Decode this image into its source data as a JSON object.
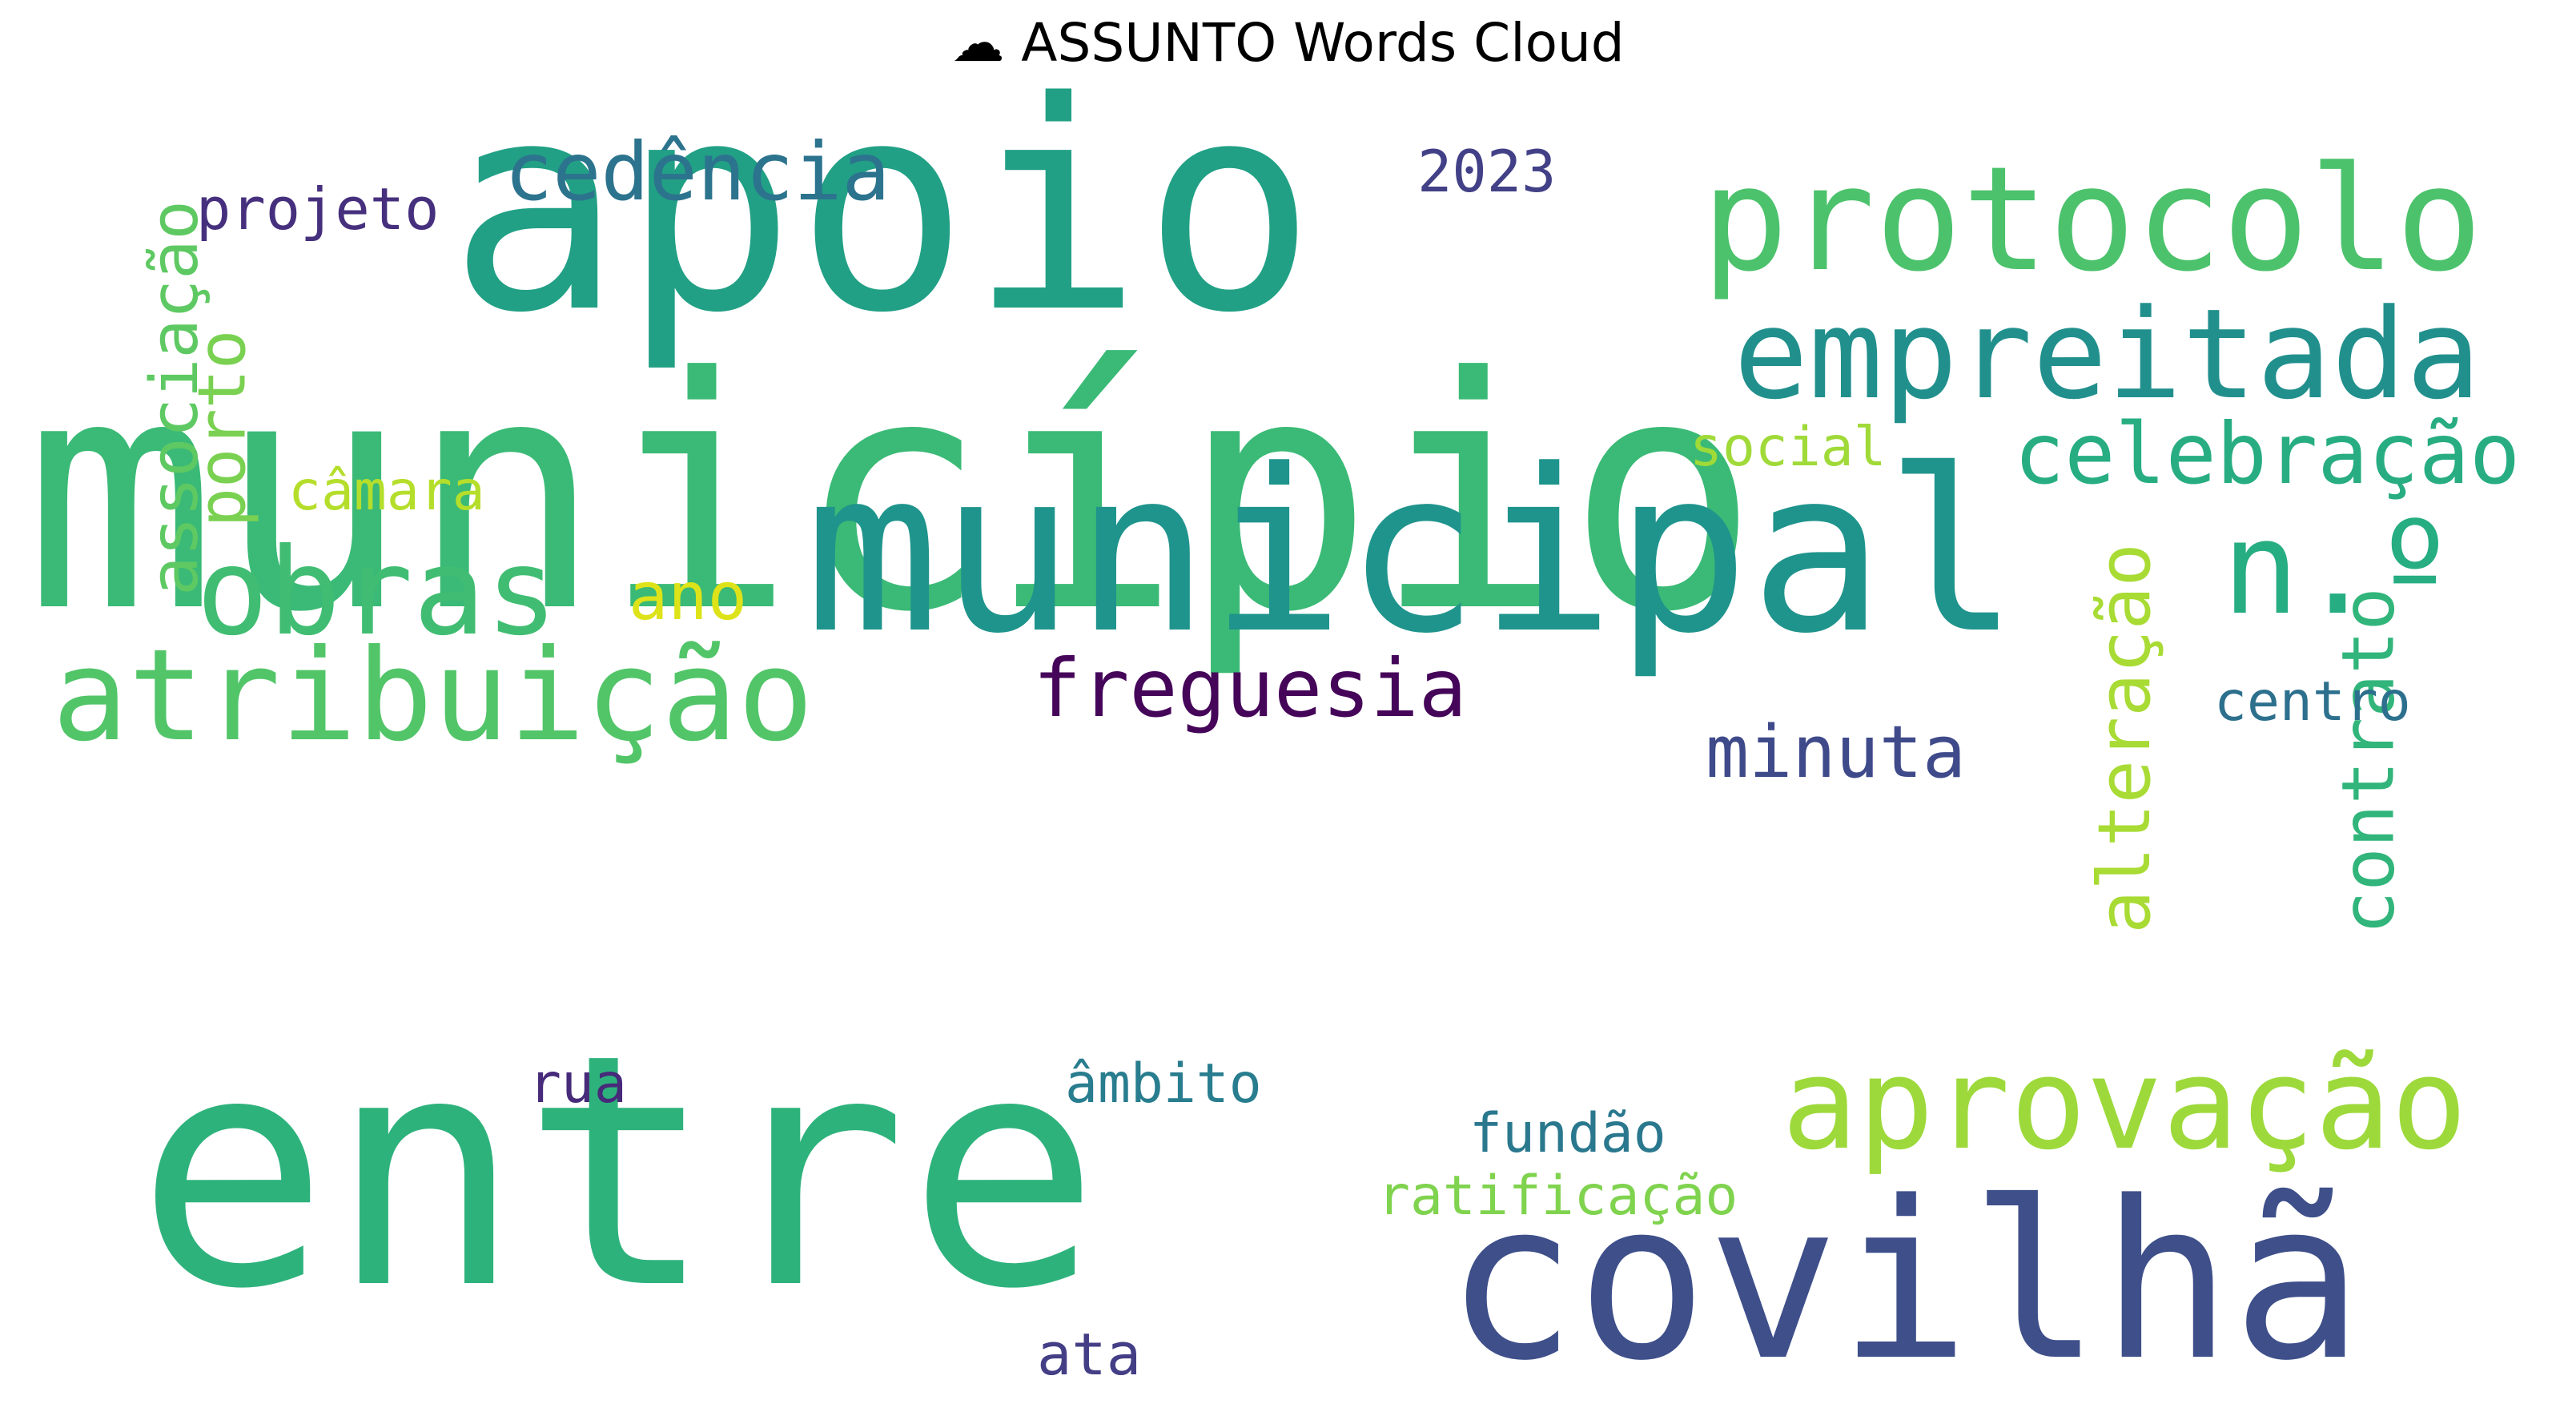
{
  "title": "☁ ASSUNTO Words Cloud",
  "words": [
    {
      "text": "município",
      "color": "#3aba76",
      "vertical": false
    },
    {
      "text": "apoio",
      "color": "#21a085",
      "vertical": false
    },
    {
      "text": "entre",
      "color": "#2eb27c",
      "vertical": false
    },
    {
      "text": "covilhã",
      "color": "#3e4f8a",
      "vertical": false
    },
    {
      "text": "municipal",
      "color": "#1f948c",
      "vertical": false
    },
    {
      "text": "protocolo",
      "color": "#4cc26c",
      "vertical": false
    },
    {
      "text": "empreitada",
      "color": "#21908d",
      "vertical": false
    },
    {
      "text": "atribuição",
      "color": "#52c569",
      "vertical": false
    },
    {
      "text": "aprovação",
      "color": "#9dd93b",
      "vertical": false
    },
    {
      "text": "obras",
      "color": "#40bd72",
      "vertical": false
    },
    {
      "text": "celebração",
      "color": "#27ad81",
      "vertical": false
    },
    {
      "text": "n.º",
      "color": "#26ad81",
      "vertical": false
    },
    {
      "text": "cedência",
      "color": "#2c738e",
      "vertical": false
    },
    {
      "text": "freguesia",
      "color": "#450559",
      "vertical": false
    },
    {
      "text": "minuta",
      "color": "#3f4a8a",
      "vertical": false
    },
    {
      "text": "contrato",
      "color": "#31b57b",
      "vertical": true
    },
    {
      "text": "alteração",
      "color": "#a8db34",
      "vertical": true
    },
    {
      "text": "associação",
      "color": "#5ec962",
      "vertical": true
    },
    {
      "text": "porto",
      "color": "#7ad151",
      "vertical": true
    },
    {
      "text": "projeto",
      "color": "#46307e",
      "vertical": false
    },
    {
      "text": "2023",
      "color": "#424086",
      "vertical": false
    },
    {
      "text": "ano",
      "color": "#dde318",
      "vertical": false
    },
    {
      "text": "câmara",
      "color": "#b5de2b",
      "vertical": false
    },
    {
      "text": "social",
      "color": "#a0da39",
      "vertical": false
    },
    {
      "text": "centro",
      "color": "#2d708e",
      "vertical": false
    },
    {
      "text": "rua",
      "color": "#472a7a",
      "vertical": false
    },
    {
      "text": "âmbito",
      "color": "#287d8e",
      "vertical": false
    },
    {
      "text": "fundão",
      "color": "#2a788e",
      "vertical": false
    },
    {
      "text": "ratificação",
      "color": "#7fd34e",
      "vertical": false
    },
    {
      "text": "ata",
      "color": "#433e85",
      "vertical": false
    }
  ]
}
